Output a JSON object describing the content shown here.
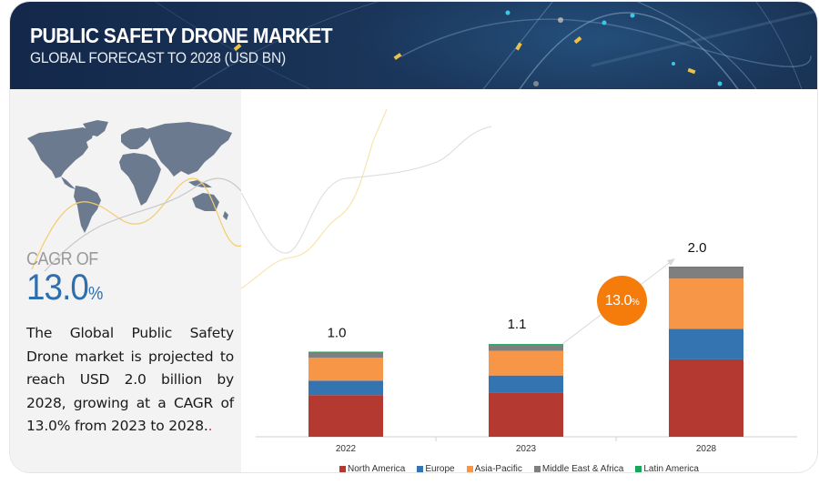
{
  "header": {
    "title": "PUBLIC SAFETY DRONE MARKET",
    "subtitle": "GLOBAL FORECAST TO 2028 (USD BN)"
  },
  "left_panel": {
    "map_icon": "world-map-icon",
    "cagr_label": "CAGR OF",
    "cagr_number": "13.0",
    "cagr_unit": "%",
    "description": "The Global Public Safety Drone market is projected to reach  USD 2.0 billion by 2028, growing at a CAGR of 13.0% from 2023 to 2028.",
    "description_trailing": "."
  },
  "badge": {
    "value": "13.0",
    "unit": "%",
    "color": "#f57c0a"
  },
  "chart_data": {
    "type": "bar",
    "stacked": true,
    "title": "PUBLIC SAFETY DRONE MARKET — GLOBAL FORECAST TO 2028 (USD BN)",
    "xlabel": "",
    "ylabel": "",
    "categories": [
      "2022",
      "2023",
      "2028"
    ],
    "totals": [
      1.0,
      1.1,
      2.0
    ],
    "total_labels": [
      "1.0",
      "1.1",
      "2.0"
    ],
    "ylim": [
      0,
      2.0
    ],
    "grid": false,
    "legend_position": "bottom",
    "annotation": "13.0% CAGR (2023–2028)",
    "series": [
      {
        "name": "North America",
        "color": "#b43a31",
        "values": [
          0.49,
          0.52,
          0.91
        ]
      },
      {
        "name": "Europe",
        "color": "#3474b0",
        "values": [
          0.17,
          0.2,
          0.36
        ]
      },
      {
        "name": "Asia-Pacific",
        "color": "#f79646",
        "values": [
          0.27,
          0.29,
          0.59
        ]
      },
      {
        "name": "Middle East & Africa",
        "color": "#7f7f7f",
        "values": [
          0.06,
          0.07,
          0.13
        ]
      },
      {
        "name": "Latin America",
        "color": "#1ea35a",
        "values": [
          0.01,
          0.01,
          0.01
        ]
      }
    ]
  }
}
